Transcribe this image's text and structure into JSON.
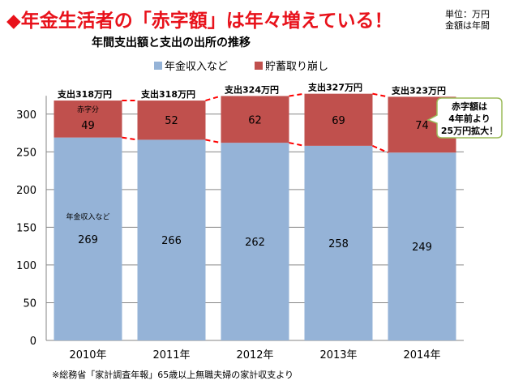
{
  "headline": "◆年金生活者の「赤字額」は年々増えている！",
  "unit_note": [
    "単位：万円",
    "金額は年間"
  ],
  "source_note": "※総務省「家計調査年報」65歳以上無職夫婦の家計収支より",
  "colors": {
    "headline": "#e8121b",
    "income": "#95b3d7",
    "savings": "#c0504d",
    "dashed": "#ff0000",
    "grid": "#868686",
    "callout_border": "#9bbb59"
  },
  "chart_data": {
    "type": "bar",
    "stacked": true,
    "title": "年間支出額と支出の出所の推移",
    "categories": [
      "2010年",
      "2011年",
      "2012年",
      "2013年",
      "2014年"
    ],
    "series": [
      {
        "name": "年金収入など",
        "values": [
          269,
          266,
          262,
          258,
          249
        ],
        "color": "#95b3d7"
      },
      {
        "name": "貯蓄取り崩し",
        "values": [
          49,
          52,
          62,
          69,
          74
        ],
        "color": "#c0504d"
      }
    ],
    "totals": [
      318,
      318,
      324,
      327,
      323
    ],
    "total_labels": [
      "支出318万円",
      "支出318万円",
      "支出324万円",
      "支出327万円",
      "支出323万円"
    ],
    "ylim": [
      0,
      320
    ],
    "yticks": [
      0,
      50,
      100,
      150,
      200,
      250,
      300
    ],
    "legend_position": "top",
    "grid": true,
    "annotations": {
      "deficit_label": "赤字分",
      "income_label": "年金収入など",
      "callout": [
        "赤字額は",
        "4年前より",
        "25万円拡大！"
      ]
    }
  }
}
